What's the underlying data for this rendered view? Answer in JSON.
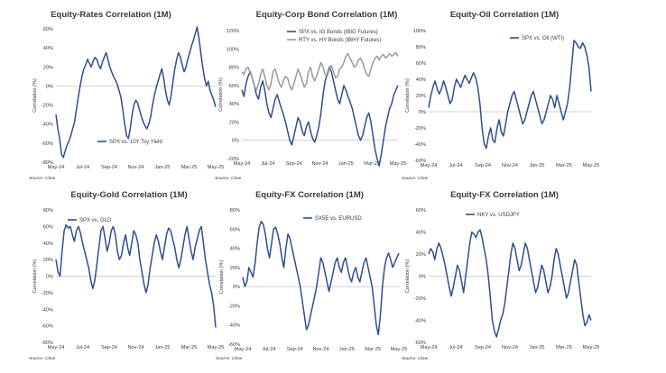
{
  "chart_data": [
    {
      "type": "line",
      "title": "Equity-Rates Correlation (1M)",
      "ylabel": "Correlation (%)",
      "ylim": [
        -80,
        60
      ],
      "yticks": [
        "60%",
        "40%",
        "20%",
        "0%",
        "-20%",
        "-40%",
        "-60%",
        "-80%"
      ],
      "xticks": [
        "May-24",
        "Jul-24",
        "Sep-24",
        "Nov-24",
        "Jan-25",
        "Mar-25",
        "May-25"
      ],
      "source": "Source: Cboe",
      "series": [
        {
          "name": "SPX vs. 10Y Tsy Yield",
          "color": "#2f4f8f",
          "y": [
            -30,
            -45,
            -55,
            -72,
            -75,
            -68,
            -62,
            -58,
            -52,
            -45,
            -38,
            -25,
            -12,
            0,
            10,
            18,
            22,
            28,
            24,
            20,
            26,
            30,
            28,
            22,
            18,
            25,
            30,
            35,
            28,
            20,
            15,
            10,
            6,
            2,
            -5,
            -12,
            -25,
            -40,
            -52,
            -55,
            -45,
            -30,
            -20,
            -15,
            -18,
            -25,
            -32,
            -38,
            -42,
            -45,
            -40,
            -32,
            -20,
            -10,
            -2,
            5,
            12,
            18,
            8,
            -5,
            -15,
            -20,
            -10,
            5,
            18,
            28,
            35,
            30,
            22,
            15,
            20,
            28,
            35,
            42,
            48,
            55,
            62,
            50,
            35,
            20,
            8,
            0,
            5,
            -5,
            -10,
            -15,
            -22
          ]
        }
      ]
    },
    {
      "type": "line",
      "title": "Equity-Corp Bond Correlation (1M)",
      "ylabel": "Correlation (%)",
      "ylim": [
        -20,
        120
      ],
      "yticks": [
        "120%",
        "100%",
        "80%",
        "60%",
        "40%",
        "20%",
        "0%",
        "-20%"
      ],
      "xticks": [
        "May-24",
        "Jul-24",
        "Sep-24",
        "Nov-24",
        "Jan-25",
        "Mar-25",
        "May-25"
      ],
      "source": "Source: Cboe",
      "series": [
        {
          "name": "SPX vs. IG Bonds (IBIG Futures)",
          "color": "#2f4f8f",
          "y": [
            55,
            48,
            62,
            70,
            75,
            68,
            60,
            50,
            45,
            58,
            65,
            55,
            40,
            30,
            25,
            35,
            45,
            50,
            42,
            35,
            28,
            20,
            10,
            0,
            -5,
            5,
            15,
            25,
            20,
            10,
            5,
            15,
            20,
            10,
            2,
            -2,
            5,
            15,
            30,
            50,
            65,
            72,
            80,
            75,
            65,
            55,
            45,
            40,
            50,
            60,
            55,
            48,
            42,
            35,
            25,
            15,
            5,
            0,
            5,
            15,
            25,
            30,
            20,
            5,
            -10,
            -20,
            -28,
            -15,
            0,
            15,
            25,
            35,
            40,
            50,
            55,
            60
          ]
        },
        {
          "name": "RTY vs. HY Bonds (IBHY Futures)",
          "color": "#9a9a9a",
          "y": [
            75,
            72,
            78,
            80,
            74,
            68,
            60,
            55,
            62,
            72,
            78,
            70,
            60,
            55,
            62,
            75,
            78,
            70,
            62,
            58,
            65,
            70,
            68,
            60,
            55,
            62,
            70,
            78,
            72,
            65,
            58,
            62,
            75,
            80,
            70,
            65,
            70,
            78,
            85,
            80,
            72,
            70,
            78,
            82,
            75,
            68,
            70,
            78,
            80,
            85,
            92,
            95,
            90,
            85,
            80,
            82,
            88,
            90,
            85,
            78,
            72,
            70,
            78,
            85,
            90,
            92,
            88,
            92,
            94,
            90,
            92,
            95,
            92,
            94,
            96,
            92
          ]
        }
      ]
    },
    {
      "type": "line",
      "title": "Equity-Oil Correlation (1M)",
      "ylabel": "Correlation (%)",
      "ylim": [
        -60,
        100
      ],
      "yticks": [
        "100%",
        "80%",
        "60%",
        "40%",
        "20%",
        "0%",
        "-20%",
        "-40%",
        "-60%"
      ],
      "xticks": [
        "May-24",
        "Jul-24",
        "Sep-24",
        "Nov-24",
        "Jan-25",
        "Mar-25",
        "May-25"
      ],
      "source": "Source: Cboe",
      "series": [
        {
          "name": "SPX vs. Oil (WTI)",
          "color": "#2f4f8f",
          "y": [
            5,
            20,
            30,
            38,
            28,
            22,
            28,
            38,
            30,
            20,
            10,
            15,
            30,
            40,
            35,
            30,
            38,
            45,
            40,
            35,
            42,
            48,
            42,
            30,
            10,
            -20,
            -40,
            -45,
            -30,
            -20,
            -35,
            -38,
            -20,
            -10,
            -25,
            -30,
            -15,
            0,
            10,
            20,
            25,
            15,
            5,
            -5,
            -15,
            -10,
            0,
            10,
            20,
            25,
            15,
            5,
            -5,
            -15,
            -10,
            0,
            10,
            20,
            15,
            5,
            20,
            10,
            0,
            -10,
            0,
            10,
            30,
            60,
            88,
            85,
            80,
            78,
            85,
            80,
            70,
            55,
            25
          ]
        }
      ]
    },
    {
      "type": "line",
      "title": "Equity-Gold Correlation (1M)",
      "ylabel": "Correlation (%)",
      "ylim": [
        -80,
        80
      ],
      "yticks": [
        "80%",
        "60%",
        "40%",
        "20%",
        "0%",
        "-20%",
        "-40%",
        "-60%",
        "-80%"
      ],
      "xticks": [
        "May-24",
        "Jul-24",
        "Sep-24",
        "Nov-24",
        "Jan-25",
        "Mar-25",
        "May-25"
      ],
      "source": "Source: Cboe",
      "series": [
        {
          "name": "SPX vs. GLD",
          "color": "#2f4f8f",
          "y": [
            20,
            5,
            0,
            30,
            55,
            62,
            58,
            60,
            50,
            42,
            55,
            60,
            52,
            40,
            30,
            20,
            10,
            -5,
            -15,
            -5,
            15,
            35,
            55,
            60,
            45,
            30,
            40,
            55,
            60,
            50,
            30,
            20,
            25,
            40,
            50,
            35,
            25,
            40,
            55,
            50,
            40,
            20,
            5,
            -10,
            -20,
            -10,
            10,
            25,
            40,
            50,
            42,
            30,
            20,
            35,
            50,
            58,
            55,
            45,
            35,
            20,
            10,
            20,
            35,
            50,
            60,
            45,
            30,
            20,
            35,
            45,
            55,
            60,
            40,
            20,
            5,
            -10,
            -20,
            -35,
            -62
          ]
        }
      ]
    },
    {
      "type": "line",
      "title": "Equity-FX Correlation (1M)",
      "ylabel": "Correlation (%)",
      "ylim": [
        -60,
        80
      ],
      "yticks": [
        "80%",
        "60%",
        "40%",
        "20%",
        "0%",
        "-20%",
        "-40%",
        "-60%"
      ],
      "xticks": [
        "May-24",
        "Jul-24",
        "Sep-24",
        "Nov-24",
        "Jan-25",
        "Mar-25",
        "May-25"
      ],
      "source": "Source: Cboe",
      "series": [
        {
          "name": "SX5E vs. EURUSD",
          "color": "#2f4f8f",
          "y": [
            10,
            0,
            5,
            20,
            15,
            10,
            25,
            45,
            62,
            68,
            65,
            55,
            40,
            30,
            45,
            60,
            62,
            55,
            45,
            30,
            20,
            40,
            55,
            50,
            40,
            30,
            20,
            10,
            0,
            -15,
            -30,
            -45,
            -40,
            -30,
            -20,
            -10,
            0,
            15,
            30,
            25,
            15,
            5,
            -5,
            5,
            15,
            25,
            30,
            20,
            15,
            25,
            30,
            20,
            10,
            5,
            15,
            20,
            10,
            5,
            15,
            25,
            30,
            20,
            10,
            0,
            -20,
            -40,
            -50,
            -30,
            0,
            20,
            30,
            35,
            28,
            20,
            25,
            30,
            35
          ]
        }
      ]
    },
    {
      "type": "line",
      "title": "Equity-FX Correlation (1M)",
      "ylabel": "Correlation (%)",
      "ylim": [
        -60,
        60
      ],
      "yticks": [
        "60%",
        "40%",
        "20%",
        "0%",
        "-20%",
        "-40%",
        "-60%"
      ],
      "xticks": [
        "May-24",
        "Jul-24",
        "Sep-24",
        "Nov-24",
        "Jan-25",
        "Mar-25",
        "May-25"
      ],
      "source": "Source: Cboe",
      "series": [
        {
          "name": "NKY vs. USDJPY",
          "color": "#2f4f8f",
          "y": [
            20,
            25,
            22,
            15,
            25,
            30,
            25,
            18,
            10,
            0,
            -10,
            -18,
            -10,
            0,
            10,
            5,
            -5,
            -15,
            0,
            15,
            30,
            40,
            38,
            35,
            40,
            42,
            35,
            25,
            15,
            0,
            -20,
            -40,
            -50,
            -55,
            -48,
            -40,
            -35,
            -25,
            -10,
            5,
            20,
            30,
            25,
            15,
            5,
            10,
            20,
            30,
            25,
            15,
            5,
            -5,
            -15,
            -10,
            0,
            10,
            5,
            -5,
            -15,
            -10,
            0,
            15,
            25,
            20,
            10,
            0,
            -10,
            -20,
            -15,
            -5,
            5,
            15,
            10,
            -5,
            -20,
            -35,
            -45,
            -42,
            -35,
            -40
          ]
        }
      ]
    }
  ]
}
